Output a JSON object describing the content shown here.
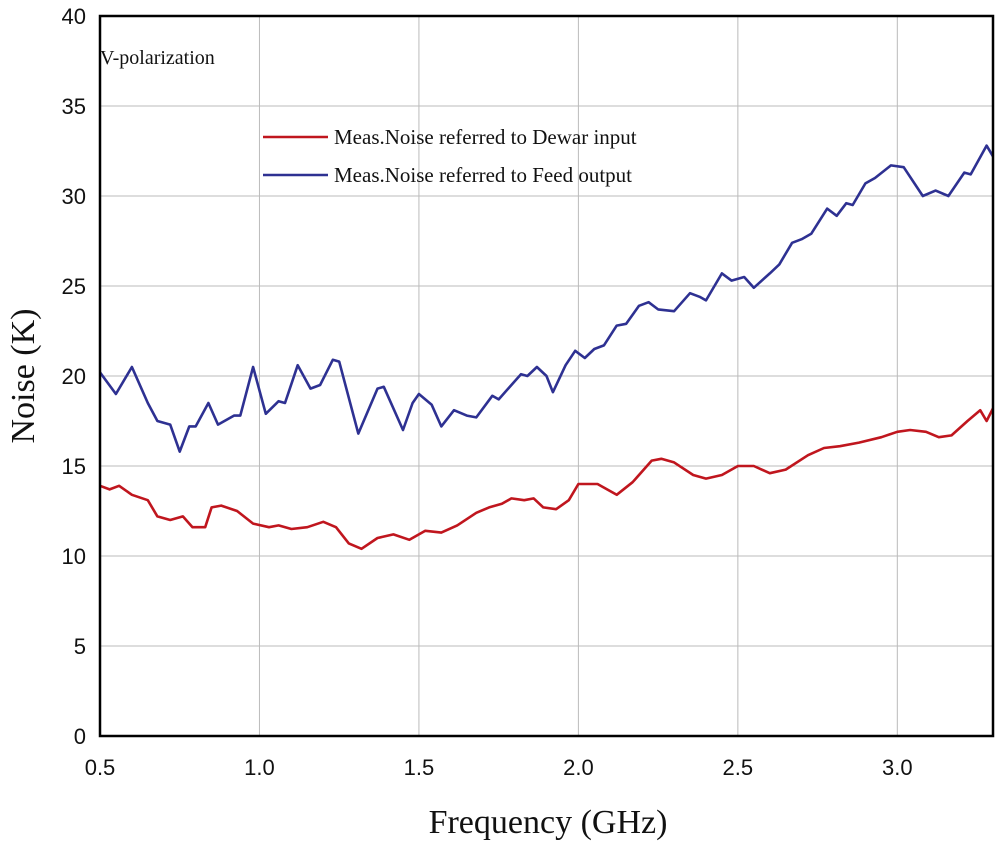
{
  "chart_data": {
    "type": "line",
    "title": "",
    "annotation": "V-polarization",
    "xlabel": "Frequency (GHz)",
    "ylabel": "Noise (K)",
    "xlim": [
      0.5,
      3.3
    ],
    "ylim": [
      0,
      40
    ],
    "xticks": [
      "0.5",
      "1.0",
      "1.5",
      "2.0",
      "2.5",
      "3.0"
    ],
    "yticks": [
      "0",
      "5",
      "10",
      "15",
      "20",
      "25",
      "30",
      "35",
      "40"
    ],
    "grid": true,
    "legend_placement": "top-center",
    "series": [
      {
        "name": "Meas.Noise referred to Dewar input",
        "color": "#c0161e",
        "x": [
          0.5,
          0.53,
          0.56,
          0.6,
          0.65,
          0.68,
          0.72,
          0.76,
          0.79,
          0.83,
          0.85,
          0.88,
          0.93,
          0.98,
          1.03,
          1.06,
          1.1,
          1.15,
          1.2,
          1.24,
          1.28,
          1.32,
          1.37,
          1.42,
          1.47,
          1.52,
          1.57,
          1.62,
          1.68,
          1.72,
          1.76,
          1.79,
          1.83,
          1.86,
          1.89,
          1.93,
          1.97,
          2.0,
          2.06,
          2.12,
          2.17,
          2.23,
          2.26,
          2.3,
          2.36,
          2.4,
          2.45,
          2.5,
          2.55,
          2.6,
          2.65,
          2.72,
          2.77,
          2.82,
          2.88,
          2.95,
          3.0,
          3.04,
          3.09,
          3.13,
          3.17,
          3.22,
          3.26,
          3.28,
          3.3
        ],
        "y": [
          13.9,
          13.7,
          13.9,
          13.4,
          13.1,
          12.2,
          12.0,
          12.2,
          11.6,
          11.6,
          12.7,
          12.8,
          12.5,
          11.8,
          11.6,
          11.7,
          11.5,
          11.6,
          11.9,
          11.6,
          10.7,
          10.4,
          11.0,
          11.2,
          10.9,
          11.4,
          11.3,
          11.7,
          12.4,
          12.7,
          12.9,
          13.2,
          13.1,
          13.2,
          12.7,
          12.6,
          13.1,
          14.0,
          14.0,
          13.4,
          14.1,
          15.3,
          15.4,
          15.2,
          14.5,
          14.3,
          14.5,
          15.0,
          15.0,
          14.6,
          14.8,
          15.6,
          16.0,
          16.1,
          16.3,
          16.6,
          16.9,
          17.0,
          16.9,
          16.6,
          16.7,
          17.5,
          18.1,
          17.5,
          18.2
        ]
      },
      {
        "name": "Meas.Noise referred to Feed output",
        "color": "#2e3192",
        "x": [
          0.5,
          0.55,
          0.6,
          0.65,
          0.68,
          0.72,
          0.75,
          0.78,
          0.8,
          0.84,
          0.87,
          0.92,
          0.94,
          0.98,
          1.02,
          1.06,
          1.08,
          1.12,
          1.16,
          1.19,
          1.23,
          1.25,
          1.31,
          1.37,
          1.39,
          1.45,
          1.48,
          1.5,
          1.54,
          1.57,
          1.61,
          1.65,
          1.68,
          1.73,
          1.75,
          1.78,
          1.82,
          1.84,
          1.87,
          1.9,
          1.92,
          1.96,
          1.99,
          2.02,
          2.05,
          2.08,
          2.12,
          2.15,
          2.19,
          2.22,
          2.25,
          2.3,
          2.35,
          2.38,
          2.4,
          2.45,
          2.48,
          2.52,
          2.55,
          2.6,
          2.63,
          2.67,
          2.7,
          2.73,
          2.78,
          2.81,
          2.84,
          2.86,
          2.9,
          2.93,
          2.98,
          3.02,
          3.08,
          3.12,
          3.16,
          3.21,
          3.23,
          3.28,
          3.3
        ],
        "y": [
          20.2,
          19.0,
          20.5,
          18.5,
          17.5,
          17.3,
          15.8,
          17.2,
          17.2,
          18.5,
          17.3,
          17.8,
          17.8,
          20.5,
          17.9,
          18.6,
          18.5,
          20.6,
          19.3,
          19.5,
          20.9,
          20.8,
          16.8,
          19.3,
          19.4,
          17.0,
          18.5,
          19.0,
          18.4,
          17.2,
          18.1,
          17.8,
          17.7,
          18.9,
          18.7,
          19.3,
          20.1,
          20.0,
          20.5,
          20.0,
          19.1,
          20.6,
          21.4,
          21.0,
          21.5,
          21.7,
          22.8,
          22.9,
          23.9,
          24.1,
          23.7,
          23.6,
          24.6,
          24.4,
          24.2,
          25.7,
          25.3,
          25.5,
          24.9,
          25.7,
          26.2,
          27.4,
          27.6,
          27.9,
          29.3,
          28.9,
          29.6,
          29.5,
          30.7,
          31.0,
          31.7,
          31.6,
          30.0,
          30.3,
          30.0,
          31.3,
          31.2,
          32.8,
          32.2
        ]
      }
    ]
  }
}
